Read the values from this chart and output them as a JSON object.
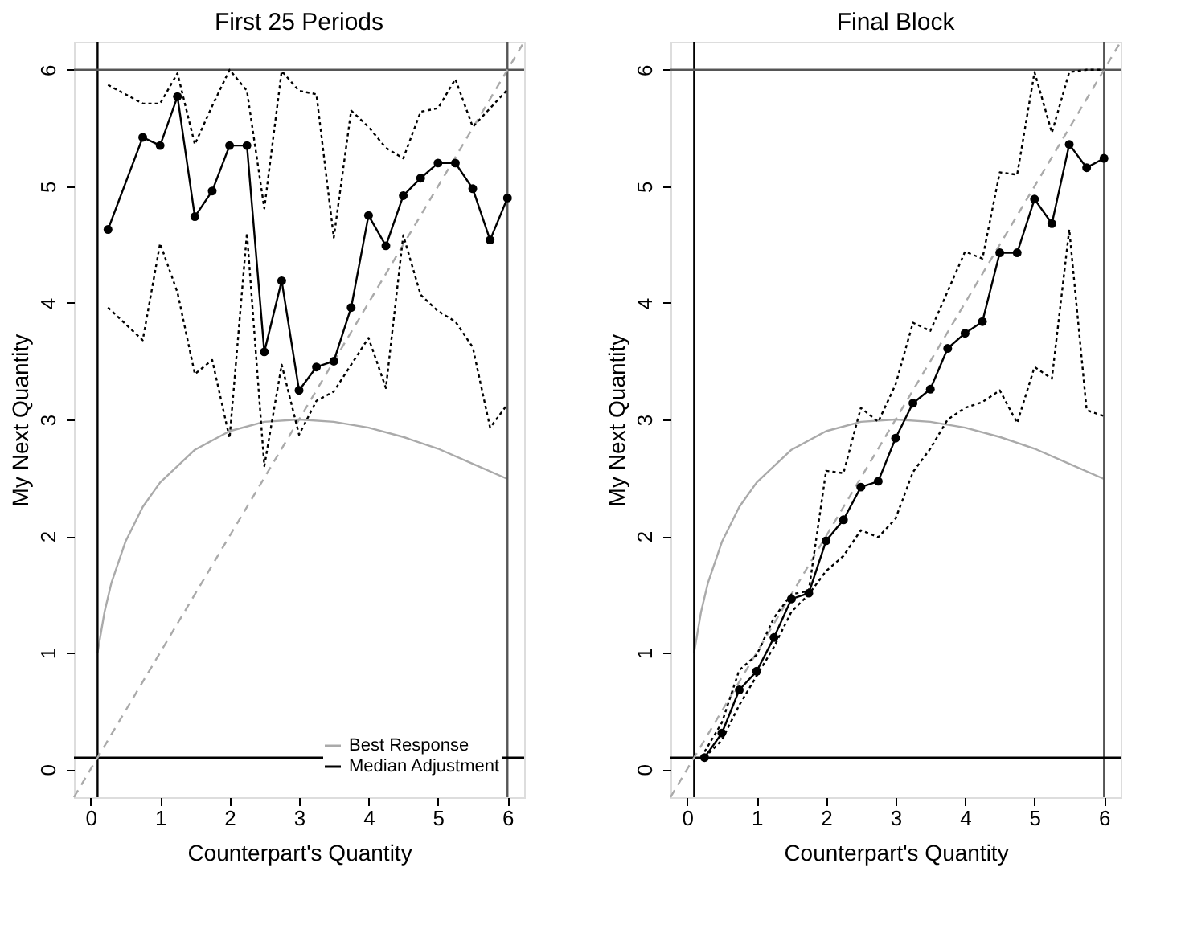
{
  "chart_data": [
    {
      "type": "line",
      "title": "First 25 Periods",
      "xlabel": "Counterpart's Quantity",
      "ylabel": "My Next Quantity",
      "xlim": [
        -0.24,
        6.24
      ],
      "ylim": [
        -0.24,
        6.24
      ],
      "xticks": [
        0,
        1,
        2,
        3,
        4,
        5,
        6
      ],
      "yticks": [
        0,
        1,
        2,
        3,
        4,
        5,
        6
      ],
      "grid": false,
      "legend": "bottom right",
      "ref_lines": [
        {
          "axis": "x",
          "value": 0.1,
          "color": "#000000"
        },
        {
          "axis": "x",
          "value": 6,
          "color": "#555555"
        },
        {
          "axis": "y",
          "value": 0.1,
          "color": "#000000"
        },
        {
          "axis": "y",
          "value": 6,
          "color": "#555555"
        }
      ],
      "series": [
        {
          "name": "Best Response",
          "color": "#aaaaaa",
          "line_style": "solid",
          "marker": "none",
          "x": [
            0.1,
            0.2,
            0.3,
            0.5,
            0.75,
            1,
            1.5,
            2,
            2.5,
            3,
            3.5,
            4,
            4.5,
            5,
            5.5,
            6
          ],
          "values": [
            1.0,
            1.35,
            1.6,
            1.95,
            2.25,
            2.46,
            2.74,
            2.9,
            2.98,
            3.0,
            2.98,
            2.93,
            2.85,
            2.75,
            2.62,
            2.49
          ]
        },
        {
          "color": "#aaaaaa",
          "line_style": "dashed",
          "marker": "none",
          "x": [
            -0.24,
            6.24
          ],
          "values": [
            -0.24,
            6.24
          ]
        },
        {
          "color": "#000000",
          "line_style": "dotted",
          "marker": "none",
          "x": [
            0.25,
            0.75,
            1,
            1.25,
            1.5,
            1.75,
            2,
            2.25,
            2.5,
            2.75,
            3,
            3.25,
            3.5,
            3.75,
            4,
            4.25,
            4.5,
            4.75,
            5,
            5.25,
            5.5,
            5.75,
            6
          ],
          "values": [
            5.87,
            5.71,
            5.71,
            5.97,
            5.36,
            5.69,
            6.0,
            5.82,
            4.81,
            5.99,
            5.82,
            5.79,
            4.56,
            5.65,
            5.51,
            5.33,
            5.24,
            5.64,
            5.67,
            5.92,
            5.51,
            5.67,
            5.83
          ]
        },
        {
          "color": "#000000",
          "line_style": "dotted",
          "marker": "none",
          "x": [
            0.25,
            0.75,
            1,
            1.25,
            1.5,
            1.75,
            2,
            2.25,
            2.5,
            2.75,
            3,
            3.25,
            3.5,
            3.75,
            4,
            4.25,
            4.5,
            4.75,
            5,
            5.25,
            5.5,
            5.75,
            6
          ],
          "values": [
            3.96,
            3.68,
            4.51,
            4.09,
            3.39,
            3.51,
            2.84,
            4.6,
            2.6,
            3.47,
            2.87,
            3.16,
            3.24,
            3.47,
            3.7,
            3.27,
            4.58,
            4.07,
            3.93,
            3.84,
            3.62,
            2.93,
            3.13
          ]
        },
        {
          "name": "Median Adjustment",
          "color": "#000000",
          "line_style": "solid",
          "marker": "circle",
          "x": [
            0.25,
            0.75,
            1,
            1.25,
            1.5,
            1.75,
            2,
            2.25,
            2.5,
            2.75,
            3,
            3.25,
            3.5,
            3.75,
            4,
            4.25,
            4.5,
            4.75,
            5,
            5.25,
            5.5,
            5.75,
            6
          ],
          "values": [
            4.63,
            5.42,
            5.35,
            5.77,
            4.74,
            4.96,
            5.35,
            5.35,
            3.58,
            4.19,
            3.25,
            3.45,
            3.5,
            3.96,
            4.75,
            4.49,
            4.92,
            5.07,
            5.2,
            5.2,
            4.98,
            4.54,
            4.9
          ]
        }
      ]
    },
    {
      "type": "line",
      "title": "Final Block",
      "xlabel": "Counterpart's Quantity",
      "ylabel": "My Next Quantity",
      "xlim": [
        -0.24,
        6.24
      ],
      "ylim": [
        -0.24,
        6.24
      ],
      "xticks": [
        0,
        1,
        2,
        3,
        4,
        5,
        6
      ],
      "yticks": [
        0,
        1,
        2,
        3,
        4,
        5,
        6
      ],
      "grid": false,
      "legend": false,
      "ref_lines": [
        {
          "axis": "x",
          "value": 0.1,
          "color": "#000000"
        },
        {
          "axis": "x",
          "value": 6,
          "color": "#555555"
        },
        {
          "axis": "y",
          "value": 0.1,
          "color": "#000000"
        },
        {
          "axis": "y",
          "value": 6,
          "color": "#555555"
        }
      ],
      "series": [
        {
          "color": "#aaaaaa",
          "line_style": "solid",
          "marker": "none",
          "x": [
            0.1,
            0.2,
            0.3,
            0.5,
            0.75,
            1,
            1.5,
            2,
            2.5,
            3,
            3.5,
            4,
            4.5,
            5,
            5.5,
            6
          ],
          "values": [
            1.0,
            1.35,
            1.6,
            1.95,
            2.25,
            2.46,
            2.74,
            2.9,
            2.98,
            3.0,
            2.98,
            2.93,
            2.85,
            2.75,
            2.62,
            2.49
          ]
        },
        {
          "color": "#aaaaaa",
          "line_style": "dashed",
          "marker": "none",
          "x": [
            -0.24,
            6.24
          ],
          "values": [
            -0.24,
            6.24
          ]
        },
        {
          "color": "#000000",
          "line_style": "dotted",
          "marker": "none",
          "x": [
            0.25,
            0.5,
            0.75,
            1,
            1.25,
            1.5,
            1.75,
            2,
            2.25,
            2.5,
            2.75,
            3,
            3.25,
            3.5,
            3.75,
            4,
            4.25,
            4.5,
            4.75,
            5,
            5.25,
            5.5,
            5.75,
            6
          ],
          "values": [
            0.15,
            0.4,
            0.85,
            0.98,
            1.3,
            1.5,
            1.53,
            2.56,
            2.54,
            3.1,
            2.98,
            3.3,
            3.83,
            3.76,
            4.1,
            4.44,
            4.38,
            5.12,
            5.1,
            5.98,
            5.46,
            5.98,
            6.0,
            6.0
          ]
        },
        {
          "color": "#000000",
          "line_style": "dotted",
          "marker": "none",
          "x": [
            0.25,
            0.5,
            0.75,
            1,
            1.25,
            1.5,
            1.75,
            2,
            2.25,
            2.5,
            2.75,
            3,
            3.25,
            3.5,
            3.75,
            4,
            4.25,
            4.5,
            4.75,
            5,
            5.25,
            5.5,
            5.75,
            6
          ],
          "values": [
            0.1,
            0.25,
            0.55,
            0.8,
            1.05,
            1.35,
            1.5,
            1.7,
            1.83,
            2.05,
            1.99,
            2.15,
            2.55,
            2.75,
            3.0,
            3.1,
            3.15,
            3.25,
            2.97,
            3.45,
            3.35,
            4.63,
            3.08,
            3.03
          ]
        },
        {
          "color": "#000000",
          "line_style": "solid",
          "marker": "circle",
          "x": [
            0.25,
            0.5,
            0.75,
            1,
            1.25,
            1.5,
            1.75,
            2,
            2.25,
            2.5,
            2.75,
            3,
            3.25,
            3.5,
            3.75,
            4,
            4.25,
            4.5,
            4.75,
            5,
            5.25,
            5.5,
            5.75,
            6
          ],
          "values": [
            0.1,
            0.31,
            0.68,
            0.84,
            1.13,
            1.46,
            1.51,
            1.96,
            2.14,
            2.42,
            2.47,
            2.84,
            3.14,
            3.26,
            3.61,
            3.74,
            3.84,
            4.43,
            4.43,
            4.89,
            4.68,
            5.36,
            5.16,
            5.24
          ]
        }
      ]
    }
  ]
}
